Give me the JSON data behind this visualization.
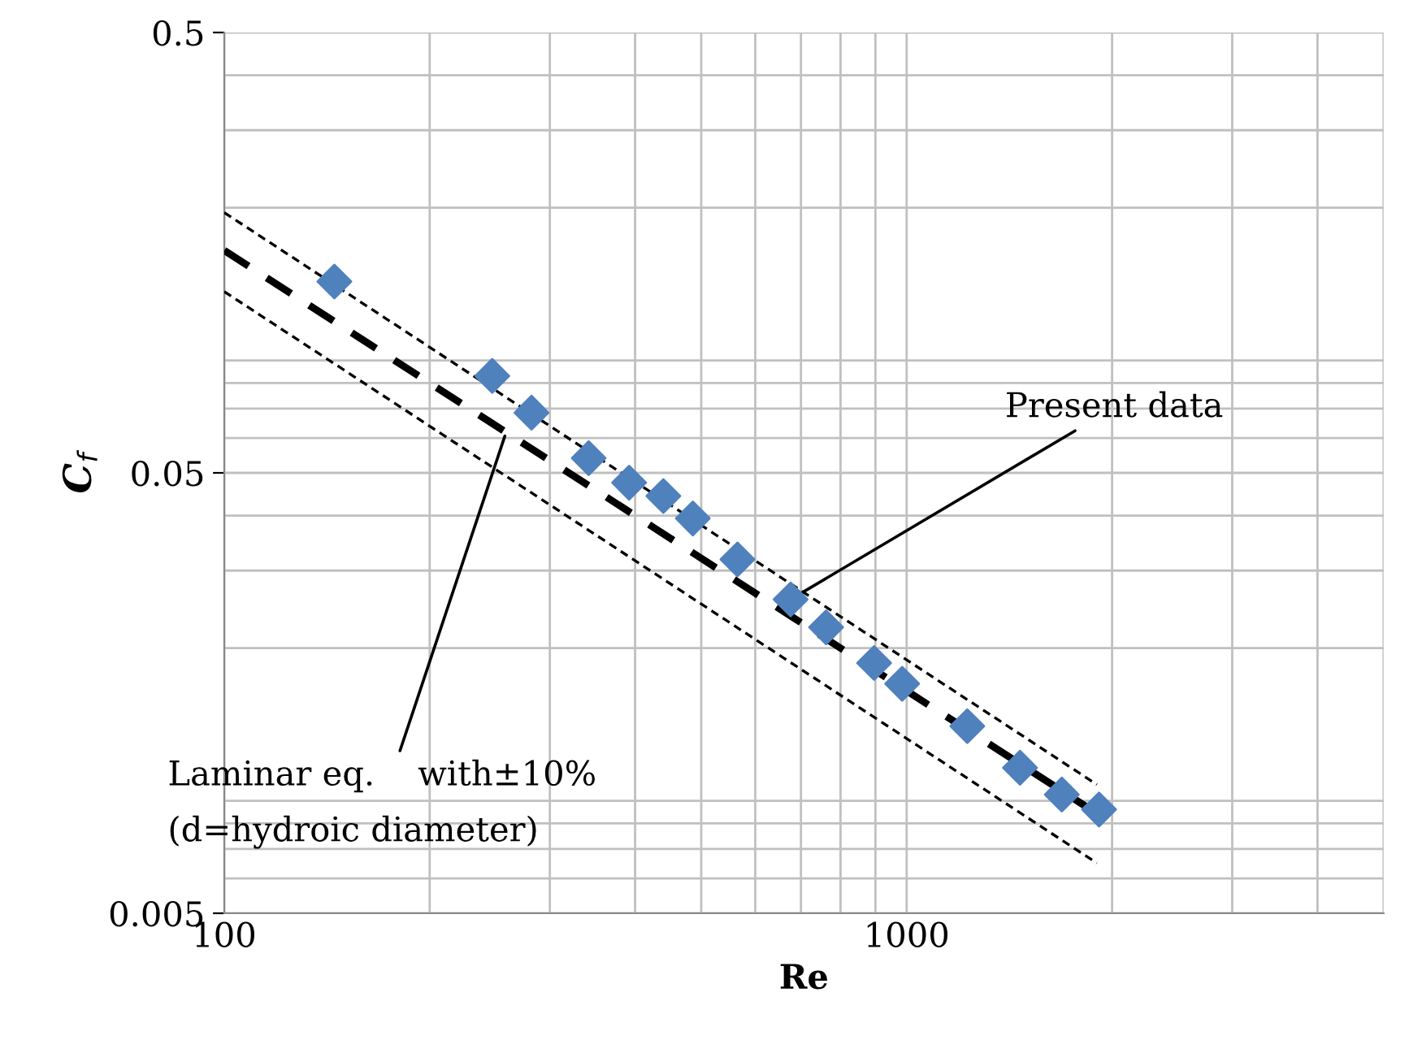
{
  "chart_data": {
    "type": "scatter",
    "xlabel": "Re",
    "ylabel": "C$_{f}$",
    "log": "xy",
    "grid": true,
    "legend": false,
    "xlim": [
      100,
      5000
    ],
    "xticks": [
      100,
      1000
    ],
    "ylim": [
      0.005,
      0.5
    ],
    "yticks": [
      0.005,
      0.05,
      0.5
    ],
    "series": [
      {
        "color": "#4f81bd",
        "marker": "diamond",
        "x": [
          145,
          247,
          282,
          342,
          392,
          440,
          486,
          565,
          676,
          762,
          896,
          985,
          1227,
          1466,
          1688,
          1914
        ],
        "values": [
          0.136,
          0.083,
          0.0685,
          0.054,
          0.0475,
          0.0443,
          0.0394,
          0.0318,
          0.0258,
          0.0223,
          0.0185,
          0.0166,
          0.0133,
          0.0107,
          0.0093,
          0.0086
        ]
      },
      {
        "type": "line",
        "color": "#000000",
        "line_style": "dashed",
        "x": [
          100,
          1900
        ],
        "values": [
          0.16,
          0.00842
        ]
      },
      {
        "type": "line",
        "color": "#000000",
        "line_style": "dotted",
        "x": [
          100,
          1900
        ],
        "values": [
          0.195,
          0.0098
        ]
      },
      {
        "type": "line",
        "color": "#000000",
        "line_style": "dotted",
        "x": [
          100,
          1900
        ],
        "values": [
          0.129,
          0.0065
        ]
      }
    ],
    "annotations": [
      {
        "text": "Present data",
        "x": 676,
        "y": 0.0258
      },
      {
        "text": "Laminar eq.    with±10%\n(d=hydroic diameter)",
        "x": 259,
        "y": 0.062
      }
    ]
  }
}
